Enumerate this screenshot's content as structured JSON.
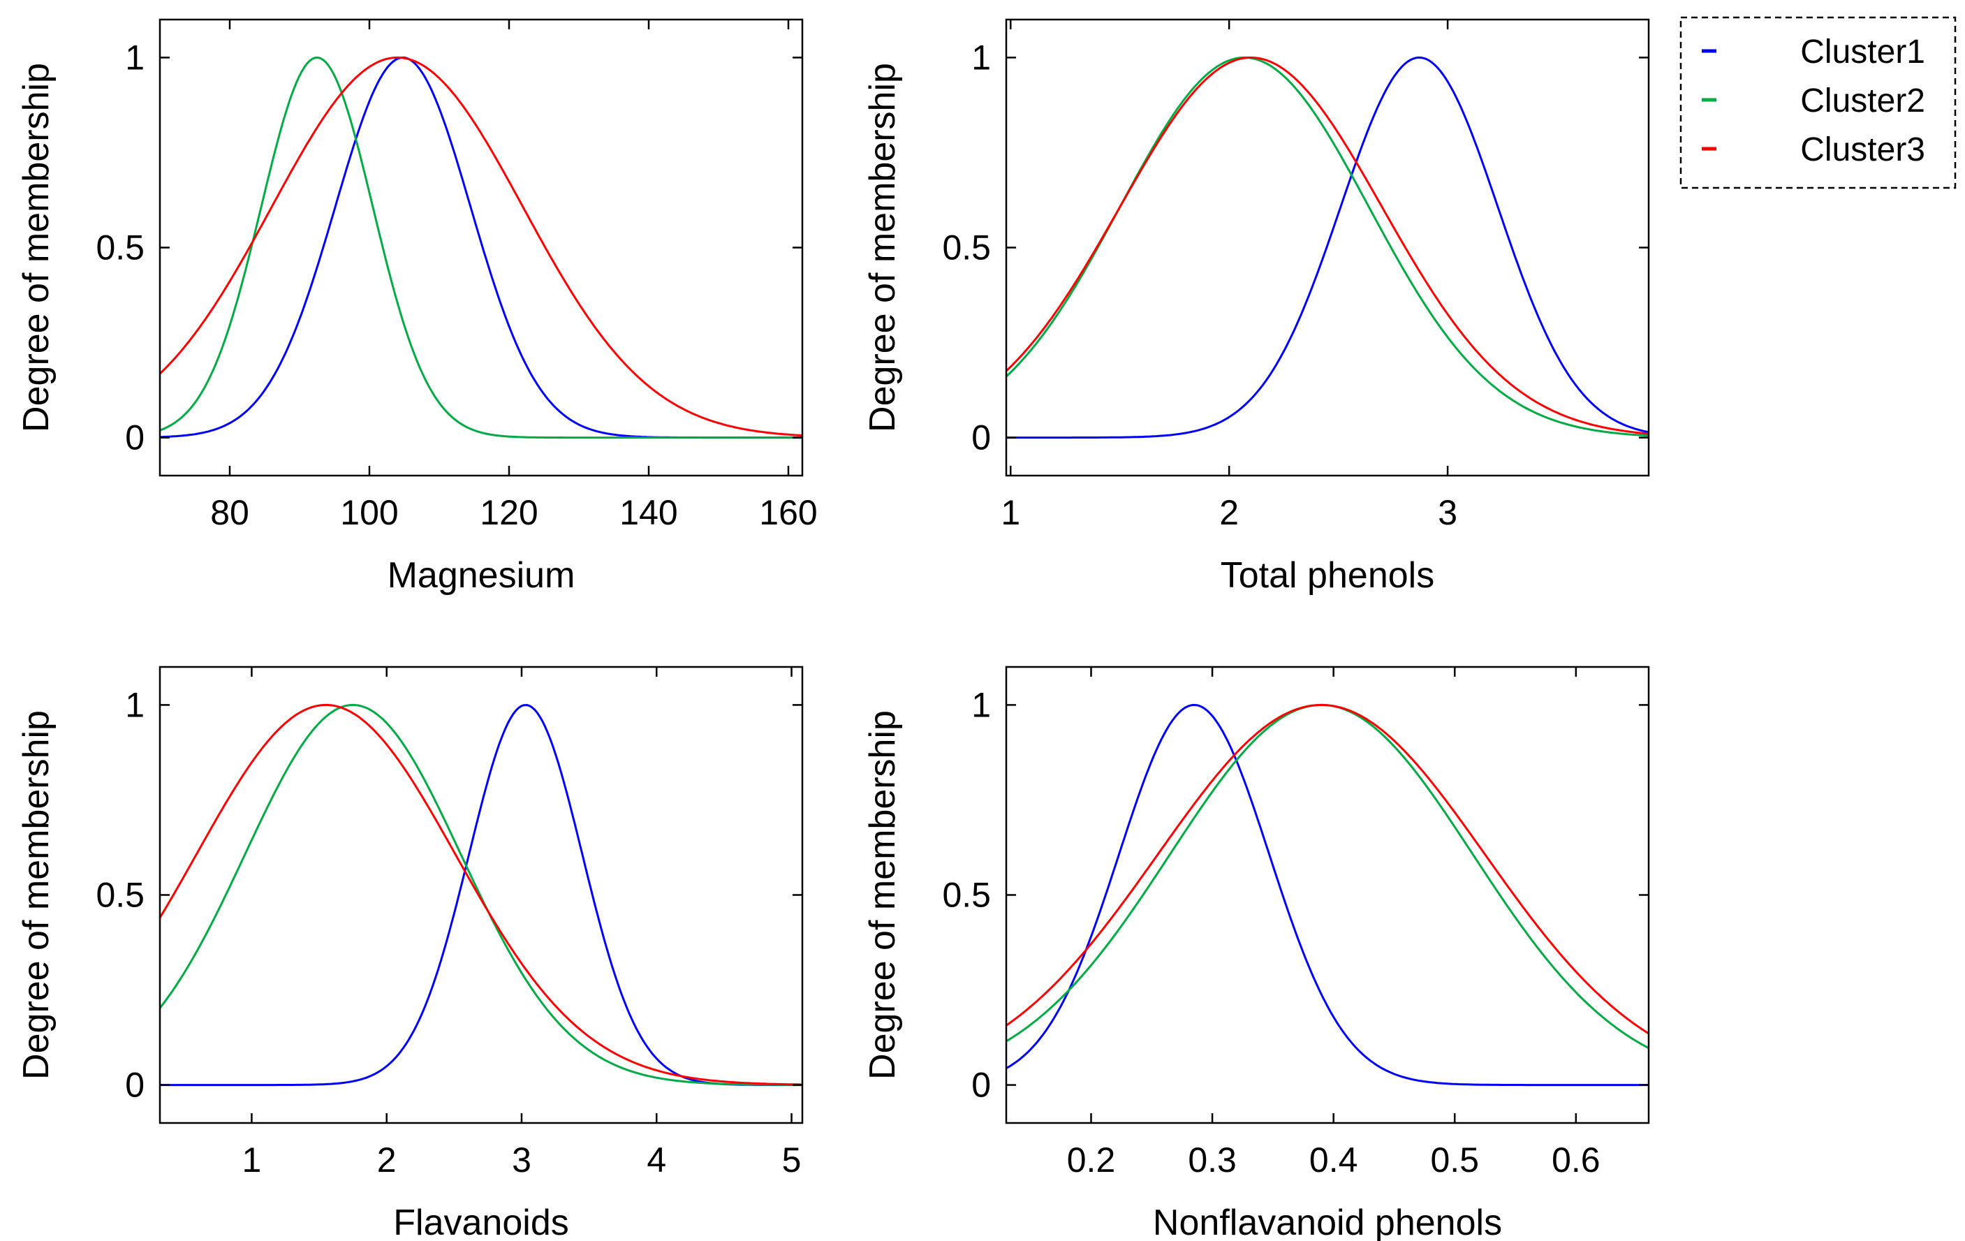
{
  "chart_data": [
    {
      "type": "line",
      "title": "",
      "xlabel": "Magnesium",
      "ylabel": "Degree of membership",
      "xlim": [
        70,
        162
      ],
      "ylim": [
        -0.1,
        1.1
      ],
      "xticks": [
        80,
        100,
        120,
        140,
        160
      ],
      "yticks": [
        0,
        0.5,
        1
      ],
      "xtick_labels": [
        "80",
        "100",
        "120",
        "140",
        "160"
      ],
      "ytick_labels": [
        "0",
        "0.5",
        "1"
      ],
      "series": [
        {
          "name": "Cluster1",
          "color": "#0000ff",
          "center": 104.8,
          "sigma": 9.7
        },
        {
          "name": "Cluster2",
          "color": "#00aa44",
          "center": 92.5,
          "sigma": 8.0
        },
        {
          "name": "Cluster3",
          "color": "#ff0000",
          "center": 104.0,
          "sigma": 18.0
        }
      ]
    },
    {
      "type": "line",
      "title": "",
      "xlabel": "Total phenols",
      "ylabel": "Degree of membership",
      "xlim": [
        0.98,
        3.92
      ],
      "ylim": [
        -0.1,
        1.1
      ],
      "xticks": [
        1,
        2,
        3
      ],
      "yticks": [
        0,
        0.5,
        1
      ],
      "xtick_labels": [
        "1",
        "2",
        "3"
      ],
      "ytick_labels": [
        "0",
        "0.5",
        "1"
      ],
      "series": [
        {
          "name": "Cluster1",
          "color": "#0000ff",
          "center": 2.87,
          "sigma": 0.36
        },
        {
          "name": "Cluster2",
          "color": "#00aa44",
          "center": 2.07,
          "sigma": 0.57
        },
        {
          "name": "Cluster3",
          "color": "#ff0000",
          "center": 2.1,
          "sigma": 0.6
        }
      ]
    },
    {
      "type": "line",
      "title": "",
      "xlabel": "Flavanoids",
      "ylabel": "Degree of membership",
      "xlim": [
        0.32,
        5.08
      ],
      "ylim": [
        -0.1,
        1.1
      ],
      "xticks": [
        1,
        2,
        3,
        4,
        5
      ],
      "yticks": [
        0,
        0.5,
        1
      ],
      "xtick_labels": [
        "1",
        "2",
        "3",
        "4",
        "5"
      ],
      "ytick_labels": [
        "0",
        "0.5",
        "1"
      ],
      "series": [
        {
          "name": "Cluster1",
          "color": "#0000ff",
          "center": 3.03,
          "sigma": 0.42
        },
        {
          "name": "Cluster2",
          "color": "#00aa44",
          "center": 1.75,
          "sigma": 0.8
        },
        {
          "name": "Cluster3",
          "color": "#ff0000",
          "center": 1.55,
          "sigma": 0.96
        }
      ]
    },
    {
      "type": "line",
      "title": "",
      "xlabel": "Nonflavanoid phenols",
      "ylabel": "Degree of membership",
      "xlim": [
        0.13,
        0.66
      ],
      "ylim": [
        -0.1,
        1.1
      ],
      "xticks": [
        0.2,
        0.3,
        0.4,
        0.5,
        0.6
      ],
      "yticks": [
        0,
        0.5,
        1
      ],
      "xtick_labels": [
        "0.2",
        "0.3",
        "0.4",
        "0.5",
        "0.6"
      ],
      "ytick_labels": [
        "0",
        "0.5",
        "1"
      ],
      "series": [
        {
          "name": "Cluster1",
          "color": "#0000ff",
          "center": 0.285,
          "sigma": 0.062
        },
        {
          "name": "Cluster2",
          "color": "#00aa44",
          "center": 0.39,
          "sigma": 0.125
        },
        {
          "name": "Cluster3",
          "color": "#ff0000",
          "center": 0.39,
          "sigma": 0.135
        }
      ]
    }
  ],
  "legend": {
    "placement": "top-right",
    "items": [
      {
        "label": "Cluster1",
        "color": "#0000ff"
      },
      {
        "label": "Cluster2",
        "color": "#00aa44"
      },
      {
        "label": "Cluster3",
        "color": "#ff0000"
      }
    ]
  }
}
